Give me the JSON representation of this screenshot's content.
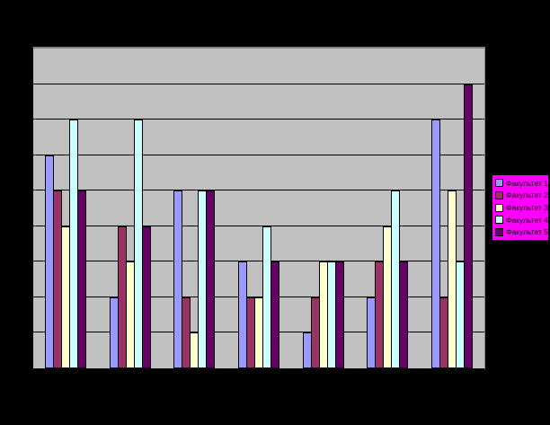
{
  "chart_data": {
    "type": "bar",
    "title": "",
    "xlabel": "",
    "ylabel": "",
    "categories": [
      "",
      "",
      "",
      "",
      "",
      "",
      ""
    ],
    "series": [
      {
        "name": "Факультет 1",
        "color": "#9999FF",
        "values": [
          6,
          2,
          5,
          3,
          1,
          2,
          7
        ]
      },
      {
        "name": "Факультет 2",
        "color": "#993366",
        "values": [
          5,
          4,
          2,
          2,
          2,
          3,
          2
        ]
      },
      {
        "name": "Факультет 3",
        "color": "#FFFFCC",
        "values": [
          4,
          3,
          1,
          2,
          3,
          4,
          5
        ]
      },
      {
        "name": "Факультет 4",
        "color": "#CCFFFF",
        "values": [
          7,
          7,
          5,
          4,
          3,
          5,
          3
        ]
      },
      {
        "name": "Факультет 5",
        "color": "#660066",
        "values": [
          5,
          4,
          5,
          3,
          3,
          3,
          8
        ]
      }
    ],
    "ylim": [
      0,
      9
    ],
    "gridline_step": 1,
    "grid": true,
    "legend_position": "right",
    "axis_tick_labels_visible": false
  },
  "colors": {
    "background": "#000000",
    "plot_fill": "#C0C0C0",
    "plot_border": "#7F7F7F",
    "gridline": "#000000",
    "bar_outline": "#000000",
    "legend_fill": "#FF00FF",
    "legend_border": "#000000",
    "legend_text": "#000000"
  }
}
